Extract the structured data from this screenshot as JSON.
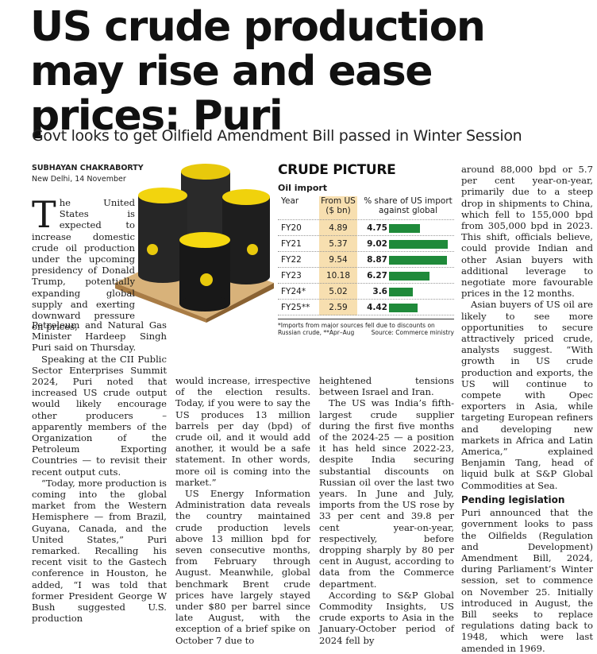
{
  "headline": "US crude production may rise and ease prices: Puri",
  "subhead": "Govt looks to get Oilfield Amendment Bill passed in Winter Session",
  "byline": "SUBHAYAN CHAKRABORTY",
  "dateline": "New Delhi, 14 November",
  "col1_lead_cap": "T",
  "col1_lead": "he United States is expected to increase domestic crude oil production under the upcoming presidency of Donald Trump, potentially expanding global supply and exerting downward pressure on prices,",
  "col1_p1_rest": "Petroleum and Natural Gas Minister Hardeep Singh Puri said on Thursday.",
  "col1_p2": "Speaking at the CII Public Sector Enterprises Summit 2024, Puri noted that increased US crude output would likely encourage other producers – apparently members of the Organization of the Petroleum Exporting Countries — to revisit their recent output cuts.",
  "col1_p3": "“Today, more production is coming into the global market from the Western Hemisphere — from Brazil, Guyana, Canada, and the United States,” Puri remarked. Recalling his recent visit to the Gastech conference in Houston, he added, “I was told that former President George W Bush suggested U.S. production",
  "col2_p1": "would increase, irrespective of the election results. Today, if you were to say the US produces 13 million barrels per day (bpd) of crude oil, and it would add another, it would be a safe statement. In other words, more oil is coming into the market.”",
  "col2_p2": "US Energy Information Administration data reveals the country maintained crude production levels above 13 million bpd for seven consecutive months, from February through August. Meanwhile, global benchmark Brent crude prices have largely stayed under $80 per barrel since late August, with the exception of a brief spike on October 7 due to",
  "col3_p1": "heightened tensions between Israel and Iran.",
  "col3_p2": "The US was India’s fifth-largest crude supplier during the first five months of the 2024-25 — a position it has held since 2022-23, despite India securing substantial discounts on Russian oil over the last two years. In June and July, imports from the US rose by 33 per cent and 39.8 per cent year-on-year, respectively, before dropping sharply by 80 per cent in August, according to data from the Commerce department.",
  "col3_p3": "According to S&P Global Commodity Insights, US crude exports to Asia in the January-October period of 2024 fell by",
  "col4_p1": "around 88,000 bpd or 5.7 per cent year-on-year, primarily due to a steep drop in shipments to China, which fell to 155,000 bpd from 305,000 bpd in 2023. This shift, officials believe, could provide Indian and other Asian buyers with additional leverage to negotiate more favourable prices in the 12 months.",
  "col4_p2": "Asian buyers of US oil are likely to see more opportunities to secure attractively priced crude, analysts suggest. “With growth in US crude production and exports, the US will continue to compete with Opec exporters in Asia, while targeting European refiners and developing new markets in Africa and Latin America,” explained Benjamin Tang, head of liquid bulk at S&P Global Commodities at Sea.",
  "col4_heading": "Pending legislation",
  "col4_p3": "Puri announced that the government looks to pass the Oilfields (Regulation and Development) Amendment Bill, 2024, during Parliament’s Winter session, set to commence on November 25. Initially introduced in August, the Bill seeks to replace regulations dating back to 1948, which were last amended in 1969.",
  "chart_data": {
    "type": "table",
    "title": "CRUDE PICTURE",
    "subtitle": "Oil import",
    "columns": [
      "Year",
      "From US ($ bn)",
      "% share of US import against global"
    ],
    "rows": [
      {
        "year": "FY20",
        "from_us": "4.89",
        "share": "4.75"
      },
      {
        "year": "FY21",
        "from_us": "5.37",
        "share": "9.02"
      },
      {
        "year": "FY22",
        "from_us": "9.54",
        "share": "8.87"
      },
      {
        "year": "FY23",
        "from_us": "10.18",
        "share": "6.27"
      },
      {
        "year": "FY24*",
        "from_us": "5.02",
        "share": "3.6"
      },
      {
        "year": "FY25**",
        "from_us": "2.59",
        "share": "4.42"
      }
    ],
    "bar_color": "#1f8a3a",
    "note": "*Imports from major sources fell due to discounts on Russian crude, **Apr–Aug",
    "source": "Source: Commerce ministry"
  }
}
